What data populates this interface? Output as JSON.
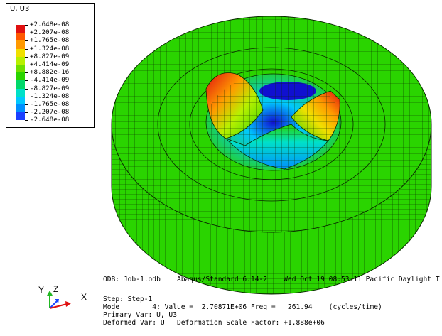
{
  "legend": {
    "title": "U, U3",
    "levels": [
      {
        "label": "+2.648e-08",
        "color": "#e01010"
      },
      {
        "label": "+2.207e-08",
        "color": "#ff5800"
      },
      {
        "label": "+1.765e-08",
        "color": "#ff9a00"
      },
      {
        "label": "+1.324e-08",
        "color": "#f0e000"
      },
      {
        "label": "+8.827e-09",
        "color": "#b8f000"
      },
      {
        "label": "+4.414e-09",
        "color": "#6fe000"
      },
      {
        "label": "+8.882e-16",
        "color": "#2ad400"
      },
      {
        "label": "-4.414e-09",
        "color": "#00d86a"
      },
      {
        "label": "-8.827e-09",
        "color": "#00e0c8"
      },
      {
        "label": "-1.324e-08",
        "color": "#00c8ff"
      },
      {
        "label": "-1.765e-08",
        "color": "#0090ff"
      },
      {
        "label": "-2.207e-08",
        "color": "#1a40ff"
      },
      {
        "label": "-2.648e-08",
        "color": "#1010d0"
      }
    ]
  },
  "info": {
    "line1": "ODB: Job-1.odb    Abaqus/Standard 6.14-2    Wed Oct 19 08:53:11 Pacific Daylight T",
    "line2": "Step: Step-1",
    "line3": "Mode        4: Value =  2.70871E+06 Freq =   261.94    (cycles/time)",
    "line4": "Primary Var: U, U3",
    "line5": "Deformed Var: U   Deformation Scale Factor: +1.888e+06"
  },
  "triad": {
    "y_label": "Y",
    "z_label": "Z",
    "x_label": "X"
  },
  "colors": {
    "mesh_green": "#2ad400",
    "mesh_lines": "#0a2a00",
    "background": "#ffffff"
  }
}
